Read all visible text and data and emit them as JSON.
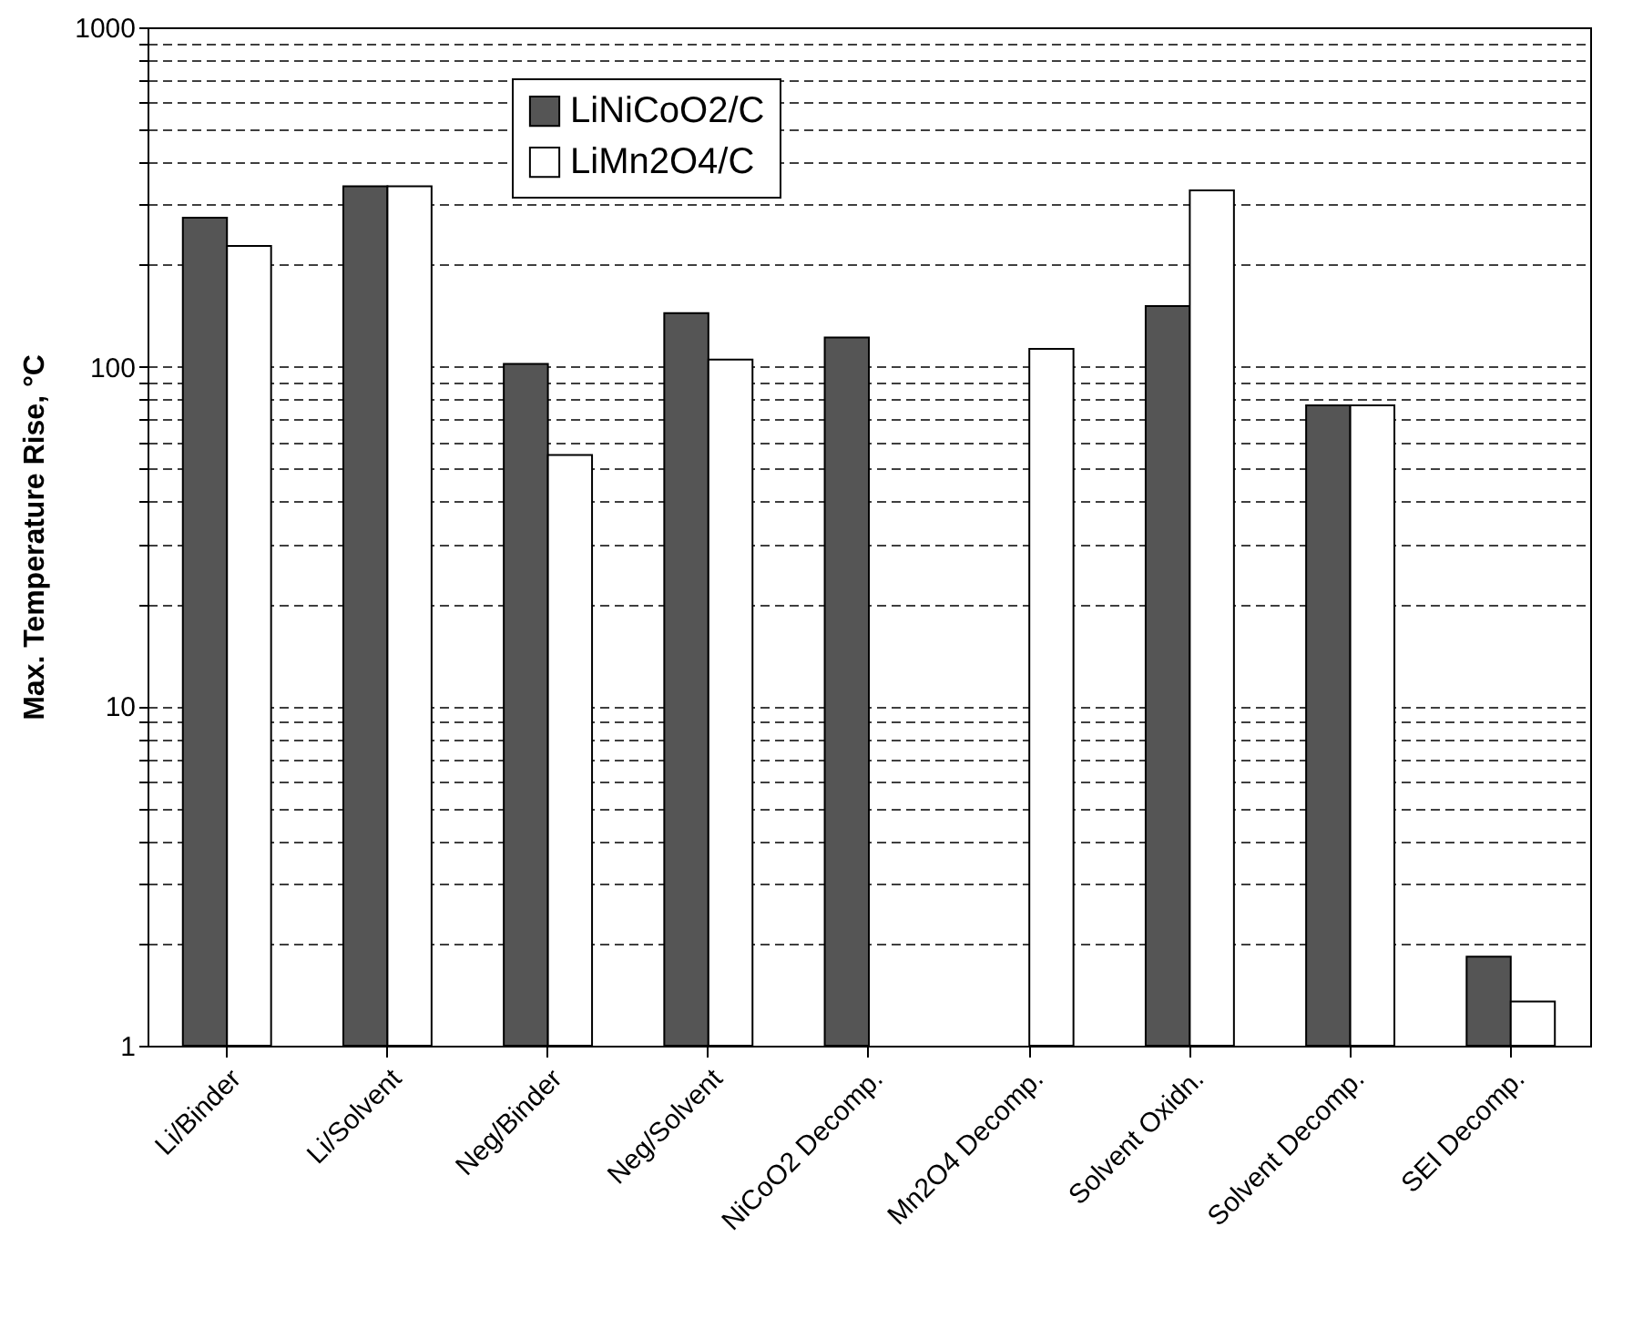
{
  "chart_data": {
    "type": "bar",
    "ylabel": "Max. Temperature Rise, °C",
    "categories": [
      "Li/Binder",
      "Li/Solvent",
      "Neg/Binder",
      "Neg/Solvent",
      "NiCoO2 Decomp.",
      "Mn2O4 Decomp.",
      "Solvent Oxidn.",
      "Solvent Decomp.",
      "SEI Decomp."
    ],
    "series": [
      {
        "name": "LiNiCoO2/C",
        "color": "#555555",
        "values": [
          275,
          340,
          102,
          144,
          122,
          null,
          151,
          77,
          1.83
        ]
      },
      {
        "name": "LiMn2O4/C",
        "color": "#ffffff",
        "values": [
          227,
          340,
          55,
          105,
          null,
          113,
          331,
          77,
          1.35
        ]
      }
    ],
    "log": true,
    "ylim": [
      1,
      1000
    ],
    "yticks": [
      1,
      {
        "value": 2,
        "label": null
      },
      {
        "value": 3,
        "label": null
      },
      {
        "value": 4,
        "label": null
      },
      {
        "value": 5,
        "label": null
      },
      {
        "value": 6,
        "label": null
      },
      {
        "value": 7,
        "label": null
      },
      {
        "value": 8,
        "label": null
      },
      {
        "value": 9,
        "label": null
      },
      10,
      {
        "value": 20,
        "label": null
      },
      {
        "value": 30,
        "label": null
      },
      {
        "value": 40,
        "label": null
      },
      {
        "value": 50,
        "label": null
      },
      {
        "value": 60,
        "label": null
      },
      {
        "value": 70,
        "label": null
      },
      {
        "value": 80,
        "label": null
      },
      {
        "value": 90,
        "label": null
      },
      100,
      {
        "value": 200,
        "label": null
      },
      {
        "value": 300,
        "label": null
      },
      {
        "value": 400,
        "label": null
      },
      {
        "value": 500,
        "label": null
      },
      {
        "value": 600,
        "label": null
      },
      {
        "value": 700,
        "label": null
      },
      {
        "value": 800,
        "label": null
      },
      {
        "value": 900,
        "label": null
      },
      1000
    ],
    "grid": "y",
    "legend": "top left"
  }
}
